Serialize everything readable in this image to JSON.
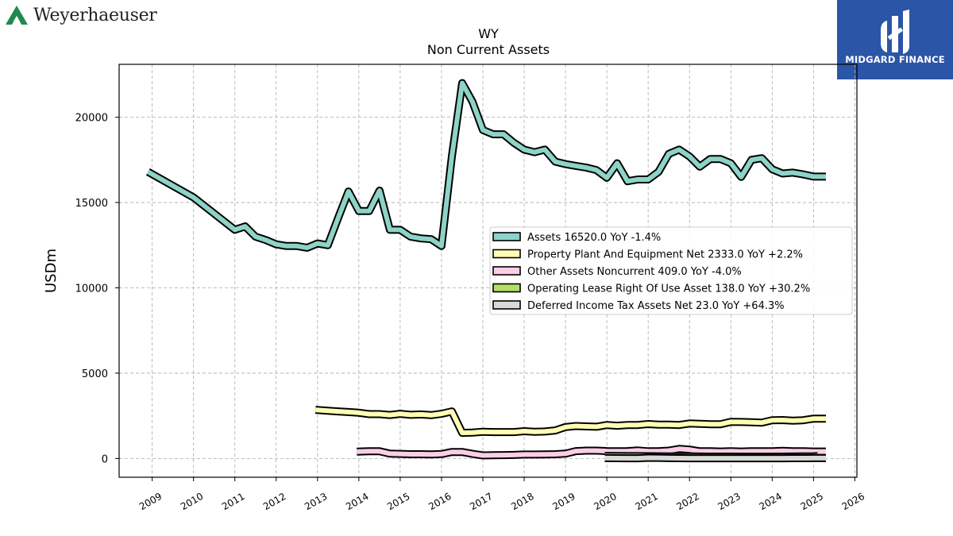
{
  "branding": {
    "left_logo_text": "Weyerhaeuser",
    "left_logo_color": "#1f8a4c",
    "right_logo_text": "MIDGARD FINANCE",
    "right_logo_bg": "#2b56a7"
  },
  "chart_data": {
    "type": "line",
    "title": "WY",
    "subtitle": "Non Current  Assets",
    "ylabel": "USDm",
    "xlabel": "",
    "xlim": [
      2008.2,
      2026.05
    ],
    "ylim": [
      -1100,
      23100
    ],
    "yticks": [
      0,
      5000,
      10000,
      15000,
      20000
    ],
    "xticks": [
      "2009",
      "2010",
      "2011",
      "2012",
      "2013",
      "2014",
      "2015",
      "2016",
      "2017",
      "2018",
      "2019",
      "2020",
      "2021",
      "2022",
      "2023",
      "2024",
      "2025",
      "2026"
    ],
    "grid": true,
    "legend_position": "center-right",
    "legend": [
      "Assets  16520.0 YoY -1.4%",
      "Property Plant And Equipment Net  2333.0 YoY +2.2%",
      "Other Assets Noncurrent  409.0 YoY -4.0%",
      "Operating Lease Right Of Use Asset  138.0 YoY +30.2%",
      "Deferred Income Tax Assets Net  23.0 YoY +64.3%"
    ],
    "series": [
      {
        "name": "Assets",
        "color": "#8dd3c7",
        "x": [
          2008.9,
          2010.0,
          2011.0,
          2011.25,
          2011.5,
          2011.75,
          2012.0,
          2012.25,
          2012.5,
          2012.75,
          2013.0,
          2013.25,
          2013.5,
          2013.75,
          2014.0,
          2014.25,
          2014.5,
          2014.75,
          2015.0,
          2015.25,
          2015.5,
          2015.75,
          2016.0,
          2016.25,
          2016.5,
          2016.75,
          2017.0,
          2017.25,
          2017.5,
          2017.75,
          2018.0,
          2018.25,
          2018.5,
          2018.75,
          2019.0,
          2019.25,
          2019.5,
          2019.75,
          2020.0,
          2020.25,
          2020.5,
          2020.75,
          2021.0,
          2021.25,
          2021.5,
          2021.75,
          2022.0,
          2022.25,
          2022.5,
          2022.75,
          2023.0,
          2023.25,
          2023.5,
          2023.75,
          2024.0,
          2024.25,
          2024.5,
          2024.75,
          2025.0,
          2025.3
        ],
        "values": [
          16800,
          15300,
          13400,
          13600,
          13000,
          12800,
          12550,
          12450,
          12450,
          12350,
          12600,
          12500,
          14100,
          15650,
          14500,
          14500,
          15700,
          13400,
          13400,
          13000,
          12900,
          12850,
          12450,
          17700,
          22000,
          20900,
          19250,
          19000,
          19000,
          18500,
          18100,
          17950,
          18100,
          17400,
          17250,
          17150,
          17050,
          16900,
          16450,
          17300,
          16250,
          16350,
          16350,
          16800,
          17850,
          18100,
          17700,
          17100,
          17550,
          17550,
          17300,
          16500,
          17500,
          17600,
          16950,
          16700,
          16750,
          16650,
          16520,
          16520
        ]
      },
      {
        "name": "Property Plant And Equipment Net",
        "color": "#ffffb3",
        "x": [
          2012.95,
          2013.25,
          2013.5,
          2013.75,
          2014.0,
          2014.25,
          2014.5,
          2014.75,
          2015.0,
          2015.25,
          2015.5,
          2015.75,
          2016.0,
          2016.25,
          2016.5,
          2016.75,
          2017.0,
          2017.25,
          2017.5,
          2017.75,
          2018.0,
          2018.25,
          2018.5,
          2018.75,
          2019.0,
          2019.25,
          2019.5,
          2019.75,
          2020.0,
          2020.25,
          2020.5,
          2020.75,
          2021.0,
          2021.25,
          2021.5,
          2021.75,
          2022.0,
          2022.25,
          2022.5,
          2022.75,
          2023.0,
          2023.25,
          2023.5,
          2023.75,
          2024.0,
          2024.25,
          2024.5,
          2024.75,
          2025.0,
          2025.3
        ],
        "values": [
          2850,
          2800,
          2760,
          2720,
          2680,
          2600,
          2600,
          2550,
          2620,
          2560,
          2580,
          2540,
          2620,
          2760,
          1500,
          1520,
          1560,
          1550,
          1550,
          1550,
          1600,
          1560,
          1580,
          1640,
          1840,
          1900,
          1880,
          1860,
          1960,
          1920,
          1960,
          1960,
          2020,
          1980,
          1980,
          1960,
          2050,
          2030,
          2010,
          2010,
          2150,
          2140,
          2120,
          2100,
          2240,
          2250,
          2220,
          2240,
          2333,
          2333
        ]
      },
      {
        "name": "Other Assets Noncurrent",
        "color": "#fccde5",
        "x": [
          2013.95,
          2014.25,
          2014.5,
          2014.75,
          2015.0,
          2015.25,
          2015.5,
          2015.75,
          2016.0,
          2016.25,
          2016.5,
          2016.75,
          2017.0,
          2017.25,
          2017.5,
          2017.75,
          2018.0,
          2018.25,
          2018.5,
          2018.75,
          2019.0,
          2019.25,
          2019.5,
          2019.75,
          2020.0,
          2020.25,
          2020.5,
          2020.75,
          2021.0,
          2021.25,
          2021.5,
          2021.75,
          2022.0,
          2022.25,
          2022.5,
          2022.75,
          2023.0,
          2023.25,
          2023.5,
          2023.75,
          2024.0,
          2024.25,
          2024.5,
          2024.75,
          2025.0,
          2025.3
        ],
        "values": [
          400,
          420,
          420,
          280,
          270,
          250,
          250,
          240,
          260,
          380,
          380,
          270,
          180,
          190,
          200,
          210,
          230,
          230,
          240,
          250,
          280,
          430,
          460,
          460,
          430,
          420,
          430,
          470,
          420,
          420,
          460,
          560,
          520,
          420,
          420,
          410,
          420,
          410,
          420,
          420,
          420,
          450,
          420,
          420,
          409,
          409
        ]
      },
      {
        "name": "Operating Lease Right Of Use Asset",
        "color": "#b3de69",
        "x": [
          2019.95,
          2020.25,
          2020.5,
          2020.75,
          2021.0,
          2021.25,
          2021.5,
          2021.75,
          2022.0,
          2022.25,
          2022.5,
          2022.75,
          2023.0,
          2023.25,
          2023.5,
          2023.75,
          2024.0,
          2024.25,
          2024.5,
          2024.75,
          2025.0,
          2025.1
        ],
        "values": [
          150,
          145,
          140,
          140,
          135,
          130,
          125,
          122,
          118,
          115,
          112,
          110,
          108,
          106,
          105,
          104,
          106,
          110,
          115,
          120,
          128,
          138
        ]
      },
      {
        "name": "Deferred Income Tax Assets Net",
        "color": "#d9d9d9",
        "x": [
          2019.95,
          2020.25,
          2020.5,
          2020.75,
          2021.0,
          2021.25,
          2021.5,
          2021.75,
          2022.0,
          2022.25,
          2022.5,
          2022.75,
          2023.0,
          2023.25,
          2023.5,
          2023.75,
          2024.0,
          2024.25,
          2024.5,
          2024.75,
          2025.0,
          2025.3
        ],
        "values": [
          20,
          15,
          10,
          10,
          40,
          35,
          20,
          15,
          10,
          10,
          10,
          10,
          10,
          10,
          10,
          10,
          10,
          12,
          15,
          18,
          23,
          23
        ]
      }
    ]
  }
}
